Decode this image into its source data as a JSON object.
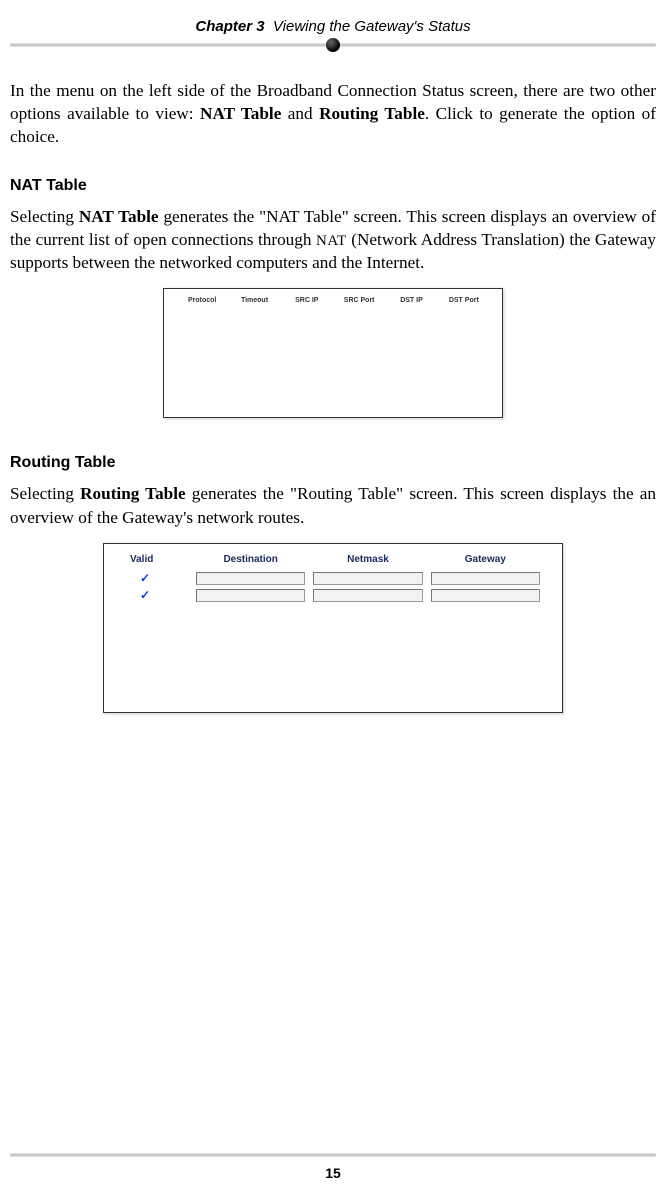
{
  "header": {
    "chapter_prefix": "Chapter 3",
    "chapter_title": "Viewing the Gateway's Status"
  },
  "intro": {
    "text_1": "In the menu on the left side of the Broadband Connection Status screen, there are two other options available to view: ",
    "bold_1": "NAT Table",
    "text_2": " and ",
    "bold_2": "Routing Table",
    "text_3": ". Click to generate  the option of choice."
  },
  "nat": {
    "heading": "NAT Table",
    "para_1": "Selecting ",
    "bold_1": "NAT Table",
    "para_2": " generates the \"NAT Table\" screen. This screen displays an overview of the current list of open connections through ",
    "sc_1": "NAT",
    "para_3": " (Network Address Translation) the Gateway supports between the networked computers and the Internet.",
    "table": {
      "columns": [
        "Protocol",
        "Timeout",
        "SRC IP",
        "SRC Port",
        "DST IP",
        "DST Port"
      ]
    }
  },
  "routing": {
    "heading": "Routing Table",
    "para_1": "Selecting ",
    "bold_1": "Routing Table",
    "para_2": " generates the \"Routing Table\" screen. This screen displays the an overview of the Gateway's network routes.",
    "table": {
      "columns": [
        "Valid",
        "Destination",
        "Netmask",
        "Gateway"
      ],
      "rows": [
        {
          "valid": "✓",
          "destination": "",
          "netmask": "",
          "gateway": ""
        },
        {
          "valid": "✓",
          "destination": "",
          "netmask": "",
          "gateway": ""
        }
      ]
    }
  },
  "footer": {
    "page_number": "15"
  }
}
